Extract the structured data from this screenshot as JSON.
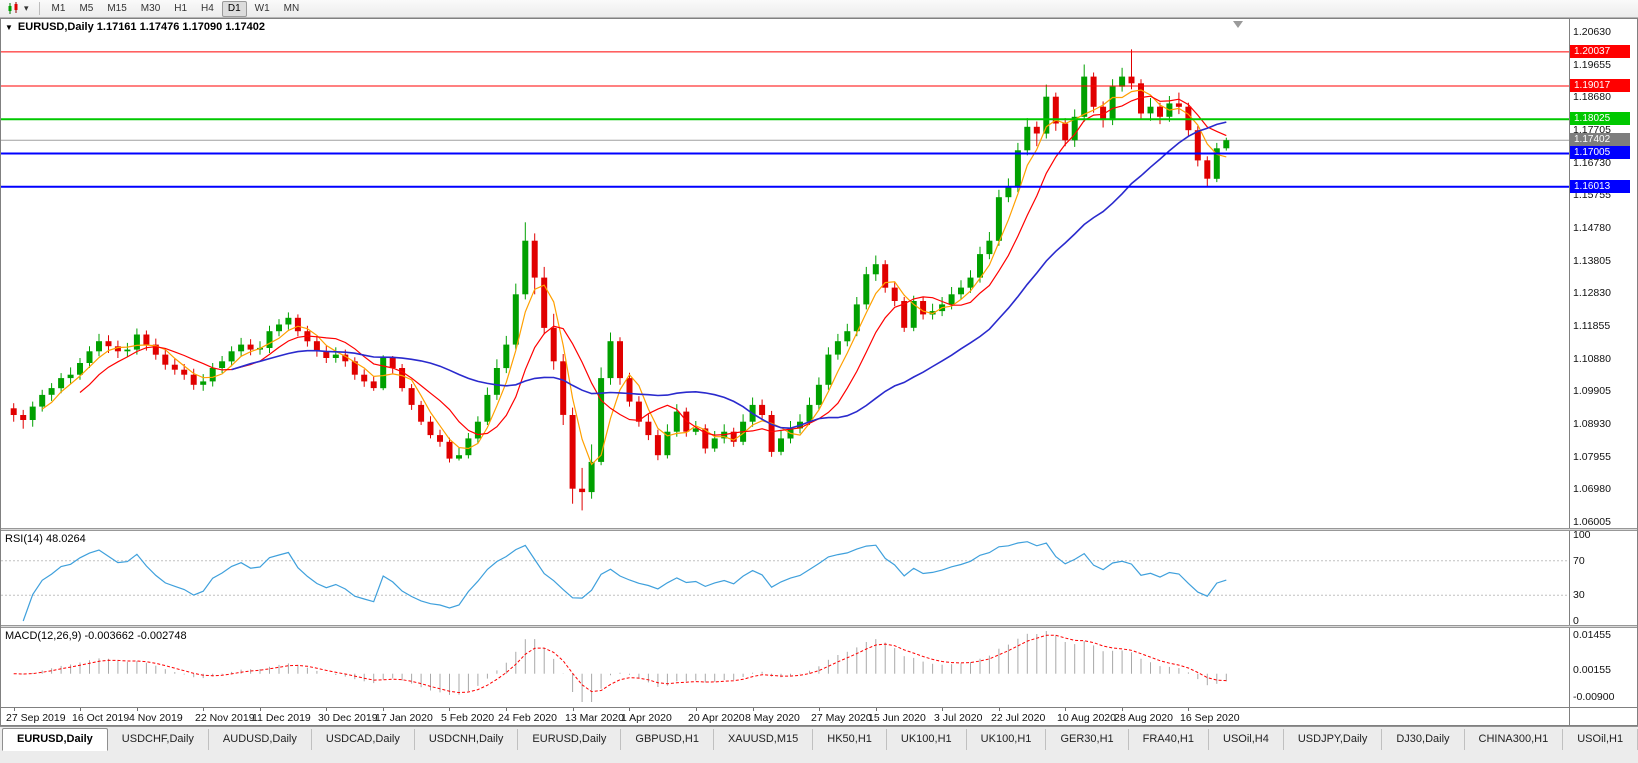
{
  "window": {
    "toolbar": {
      "timeframes": [
        "M1",
        "M5",
        "M15",
        "M30",
        "H1",
        "H4",
        "D1",
        "W1",
        "MN"
      ],
      "active_timeframe": "D1"
    }
  },
  "main_chart": {
    "dropdown_glyph": "▼",
    "title": "EURUSD,Daily",
    "ohlc_text": "1.17161 1.17476 1.17090 1.17402"
  },
  "rsi_panel": {
    "label": "RSI(14) 48.0264"
  },
  "macd_panel": {
    "label": "MACD(12,26,9) -0.003662 -0.002748"
  },
  "axes": {
    "price_ticks": [
      "1.20630",
      "1.19655",
      "1.18680",
      "1.17705",
      "1.16730",
      "1.15755",
      "1.14780",
      "1.13805",
      "1.12830",
      "1.11855",
      "1.10880",
      "1.09905",
      "1.08930",
      "1.07955",
      "1.06980",
      "1.06005"
    ],
    "rsi_ticks": [
      100,
      70,
      30,
      0
    ],
    "macd_ticks": [
      "0.01455",
      "0.00155",
      "-0.00900"
    ],
    "date_ticks": [
      "27 Sep 2019",
      "16 Oct 2019",
      "4 Nov 2019",
      "22 Nov 2019",
      "11 Dec 2019",
      "30 Dec 2019",
      "17 Jan 2020",
      "5 Feb 2020",
      "24 Feb 2020",
      "13 Mar 2020",
      "1 Apr 2020",
      "20 Apr 2020",
      "8 May 2020",
      "27 May 2020",
      "15 Jun 2020",
      "3 Jul 2020",
      "22 Jul 2020",
      "10 Aug 2020",
      "28 Aug 2020",
      "16 Sep 2020"
    ]
  },
  "levels": [
    {
      "value": 1.20037,
      "label": "1.20037",
      "color": "#FF0000",
      "width": 1
    },
    {
      "value": 1.19017,
      "label": "1.19017",
      "color": "#FF0000",
      "width": 1
    },
    {
      "value": 1.18025,
      "label": "1.18025",
      "color": "#00C800",
      "width": 2
    },
    {
      "value": 1.17005,
      "label": "1.17005",
      "color": "#0000FF",
      "width": 2
    },
    {
      "value": 1.16013,
      "label": "1.16013",
      "color": "#0000FF",
      "width": 2
    }
  ],
  "current_price": {
    "value": 1.17402,
    "label": "1.17402",
    "line_color": "#A0A0A0",
    "label_bg": "#7D7D7D"
  },
  "chart_data": {
    "type": "candlestick",
    "symbol": "EURUSD",
    "timeframe": "Daily",
    "up_color": "#00A000",
    "down_color": "#E00000",
    "ma_colors": [
      "#FFA000",
      "#FF0000",
      "#2A2ACD"
    ],
    "rsi": {
      "period": 14,
      "current": 48.0264,
      "levels": [
        70,
        30
      ],
      "color": "#3FA0DC"
    },
    "macd": {
      "fast": 12,
      "slow": 26,
      "signal": 9,
      "current_macd": -0.003662,
      "current_signal": -0.002748,
      "histogram_color": "#A8A8A8",
      "signal_color": "#FF0000"
    },
    "price_range": {
      "top_tick": 1.2063,
      "tick_step": 0.00975,
      "bottom_tick": 1.06005
    },
    "candles": [
      [
        1.094,
        1.0955,
        1.09,
        1.092
      ],
      [
        1.092,
        1.0935,
        1.0879,
        1.0905
      ],
      [
        1.0905,
        1.096,
        1.0885,
        1.0945
      ],
      [
        1.0945,
        1.0995,
        1.093,
        1.098
      ],
      [
        1.098,
        1.1015,
        1.0962,
        1.1
      ],
      [
        1.1,
        1.1045,
        1.0985,
        1.103
      ],
      [
        1.103,
        1.1062,
        1.1012,
        1.104
      ],
      [
        1.104,
        1.109,
        1.1025,
        1.1075
      ],
      [
        1.1075,
        1.1125,
        1.106,
        1.111
      ],
      [
        1.111,
        1.1162,
        1.1095,
        1.114
      ],
      [
        1.114,
        1.1158,
        1.1105,
        1.1125
      ],
      [
        1.1125,
        1.1142,
        1.109,
        1.111
      ],
      [
        1.111,
        1.1135,
        1.1092,
        1.1115
      ],
      [
        1.1115,
        1.1178,
        1.11,
        1.116
      ],
      [
        1.116,
        1.1172,
        1.1112,
        1.113
      ],
      [
        1.113,
        1.1148,
        1.1085,
        1.11
      ],
      [
        1.11,
        1.1118,
        1.1055,
        1.107
      ],
      [
        1.107,
        1.1088,
        1.104,
        1.1055
      ],
      [
        1.1055,
        1.1072,
        1.1025,
        1.104
      ],
      [
        1.104,
        1.1058,
        1.0995,
        1.101
      ],
      [
        1.101,
        1.1042,
        1.0992,
        1.102
      ],
      [
        1.102,
        1.1075,
        1.1005,
        1.106
      ],
      [
        1.106,
        1.1096,
        1.1045,
        1.108
      ],
      [
        1.108,
        1.1125,
        1.1065,
        1.111
      ],
      [
        1.111,
        1.115,
        1.1094,
        1.113
      ],
      [
        1.113,
        1.1146,
        1.1098,
        1.1115
      ],
      [
        1.1115,
        1.114,
        1.11,
        1.112
      ],
      [
        1.112,
        1.1186,
        1.1105,
        1.117
      ],
      [
        1.117,
        1.1206,
        1.1155,
        1.119
      ],
      [
        1.119,
        1.1226,
        1.1175,
        1.121
      ],
      [
        1.121,
        1.122,
        1.1155,
        1.117
      ],
      [
        1.117,
        1.1186,
        1.1124,
        1.114
      ],
      [
        1.114,
        1.1156,
        1.1094,
        1.111
      ],
      [
        1.111,
        1.1126,
        1.1075,
        1.109
      ],
      [
        1.109,
        1.1122,
        1.1076,
        1.11
      ],
      [
        1.11,
        1.1115,
        1.1064,
        1.108
      ],
      [
        1.108,
        1.1092,
        1.1025,
        1.104
      ],
      [
        1.104,
        1.1056,
        1.1004,
        1.102
      ],
      [
        1.102,
        1.1036,
        1.0992,
        1.1
      ],
      [
        1.1,
        1.1098,
        1.0994,
        1.109
      ],
      [
        1.109,
        1.1096,
        1.1044,
        1.106
      ],
      [
        1.106,
        1.1072,
        1.099,
        1.1
      ],
      [
        1.1,
        1.1012,
        1.0935,
        1.095
      ],
      [
        1.095,
        1.0962,
        1.089,
        1.09
      ],
      [
        1.09,
        1.0916,
        1.085,
        1.086
      ],
      [
        1.086,
        1.0876,
        1.0825,
        1.084
      ],
      [
        1.084,
        1.0852,
        1.0778,
        1.079
      ],
      [
        1.079,
        1.0822,
        1.0784,
        1.08
      ],
      [
        1.08,
        1.0866,
        1.079,
        1.085
      ],
      [
        1.085,
        1.0916,
        1.0836,
        1.09
      ],
      [
        1.09,
        1.1002,
        1.089,
        1.098
      ],
      [
        1.098,
        1.1086,
        1.0965,
        1.106
      ],
      [
        1.106,
        1.1156,
        1.1045,
        1.113
      ],
      [
        1.113,
        1.1312,
        1.1115,
        1.128
      ],
      [
        1.128,
        1.1495,
        1.1265,
        1.144
      ],
      [
        1.144,
        1.1462,
        1.128,
        1.133
      ],
      [
        1.133,
        1.1362,
        1.116,
        1.118
      ],
      [
        1.118,
        1.1222,
        1.1055,
        1.108
      ],
      [
        1.108,
        1.1102,
        1.089,
        1.092
      ],
      [
        1.092,
        1.0942,
        1.0655,
        1.07
      ],
      [
        1.07,
        1.0762,
        1.0635,
        1.069
      ],
      [
        1.069,
        1.0832,
        1.067,
        1.078
      ],
      [
        1.078,
        1.1062,
        1.077,
        1.103
      ],
      [
        1.103,
        1.1166,
        1.101,
        1.114
      ],
      [
        1.114,
        1.1152,
        1.101,
        1.103
      ],
      [
        1.103,
        1.1046,
        1.0945,
        1.096
      ],
      [
        1.096,
        1.0976,
        1.0885,
        1.09
      ],
      [
        1.09,
        1.0922,
        1.0845,
        1.086
      ],
      [
        1.086,
        1.0876,
        1.0785,
        1.08
      ],
      [
        1.08,
        1.0892,
        1.079,
        1.087
      ],
      [
        1.087,
        1.0952,
        1.0855,
        1.093
      ],
      [
        1.093,
        1.0942,
        1.0855,
        1.087
      ],
      [
        1.087,
        1.0902,
        1.086,
        1.088
      ],
      [
        1.088,
        1.0892,
        1.0805,
        1.082
      ],
      [
        1.082,
        1.0872,
        1.081,
        1.085
      ],
      [
        1.085,
        1.0892,
        1.0835,
        1.087
      ],
      [
        1.087,
        1.0882,
        1.0825,
        1.084
      ],
      [
        1.084,
        1.0922,
        1.083,
        1.09
      ],
      [
        1.09,
        1.0972,
        1.0885,
        1.095
      ],
      [
        1.095,
        1.0966,
        1.0905,
        1.092
      ],
      [
        1.092,
        1.0932,
        1.0795,
        1.081
      ],
      [
        1.081,
        1.0872,
        1.08,
        1.085
      ],
      [
        1.085,
        1.0902,
        1.0835,
        1.088
      ],
      [
        1.088,
        1.0922,
        1.0865,
        1.09
      ],
      [
        1.09,
        1.0972,
        1.089,
        1.095
      ],
      [
        1.095,
        1.1032,
        1.0935,
        1.101
      ],
      [
        1.101,
        1.1122,
        1.0995,
        1.11
      ],
      [
        1.11,
        1.1162,
        1.1085,
        1.114
      ],
      [
        1.114,
        1.1192,
        1.1125,
        1.117
      ],
      [
        1.117,
        1.1272,
        1.1155,
        1.125
      ],
      [
        1.125,
        1.1362,
        1.1235,
        1.134
      ],
      [
        1.134,
        1.1396,
        1.132,
        1.137
      ],
      [
        1.137,
        1.1382,
        1.1285,
        1.13
      ],
      [
        1.13,
        1.1316,
        1.1245,
        1.126
      ],
      [
        1.126,
        1.1272,
        1.1168,
        1.118
      ],
      [
        1.118,
        1.1276,
        1.117,
        1.126
      ],
      [
        1.126,
        1.1272,
        1.1205,
        1.122
      ],
      [
        1.122,
        1.1252,
        1.1205,
        1.123
      ],
      [
        1.123,
        1.1272,
        1.1215,
        1.125
      ],
      [
        1.125,
        1.1302,
        1.1235,
        1.128
      ],
      [
        1.128,
        1.1322,
        1.1265,
        1.13
      ],
      [
        1.13,
        1.1352,
        1.1285,
        1.133
      ],
      [
        1.133,
        1.1422,
        1.1315,
        1.14
      ],
      [
        1.14,
        1.1466,
        1.1385,
        1.144
      ],
      [
        1.144,
        1.1592,
        1.1425,
        1.157
      ],
      [
        1.157,
        1.1626,
        1.1555,
        1.16
      ],
      [
        1.16,
        1.1732,
        1.1585,
        1.171
      ],
      [
        1.171,
        1.1806,
        1.1695,
        1.178
      ],
      [
        1.178,
        1.1796,
        1.1722,
        1.176
      ],
      [
        1.176,
        1.1906,
        1.1745,
        1.187
      ],
      [
        1.187,
        1.1882,
        1.1768,
        1.179
      ],
      [
        1.179,
        1.1806,
        1.1722,
        1.174
      ],
      [
        1.174,
        1.1832,
        1.172,
        1.181
      ],
      [
        1.181,
        1.1966,
        1.1795,
        1.193
      ],
      [
        1.193,
        1.1942,
        1.1822,
        1.184
      ],
      [
        1.184,
        1.1856,
        1.1778,
        1.18
      ],
      [
        1.18,
        1.1922,
        1.1785,
        1.19
      ],
      [
        1.19,
        1.1956,
        1.1885,
        1.193
      ],
      [
        1.193,
        1.2011,
        1.1892,
        1.191
      ],
      [
        1.191,
        1.1922,
        1.1802,
        1.182
      ],
      [
        1.182,
        1.1866,
        1.1798,
        1.184
      ],
      [
        1.184,
        1.1852,
        1.1788,
        1.181
      ],
      [
        1.181,
        1.1872,
        1.1795,
        1.185
      ],
      [
        1.185,
        1.1882,
        1.1818,
        1.184
      ],
      [
        1.184,
        1.1852,
        1.1752,
        1.177
      ],
      [
        1.177,
        1.1782,
        1.1662,
        1.168
      ],
      [
        1.168,
        1.1692,
        1.16013,
        1.1625
      ],
      [
        1.1625,
        1.1732,
        1.1615,
        1.1716
      ],
      [
        1.17161,
        1.17476,
        1.1709,
        1.17402
      ]
    ]
  },
  "tabs": {
    "active_index": 0,
    "items": [
      "EURUSD,Daily",
      "USDCHF,Daily",
      "AUDUSD,Daily",
      "USDCAD,Daily",
      "USDCNH,Daily",
      "EURUSD,Daily",
      "GBPUSD,H1",
      "XAUUSD,M15",
      "HK50,H1",
      "UK100,H1",
      "UK100,H1",
      "GER30,H1",
      "FRA40,H1",
      "USOil,H4",
      "USDJPY,Daily",
      "DJ30,Daily",
      "CHINA300,H1",
      "USOil,H1"
    ]
  }
}
